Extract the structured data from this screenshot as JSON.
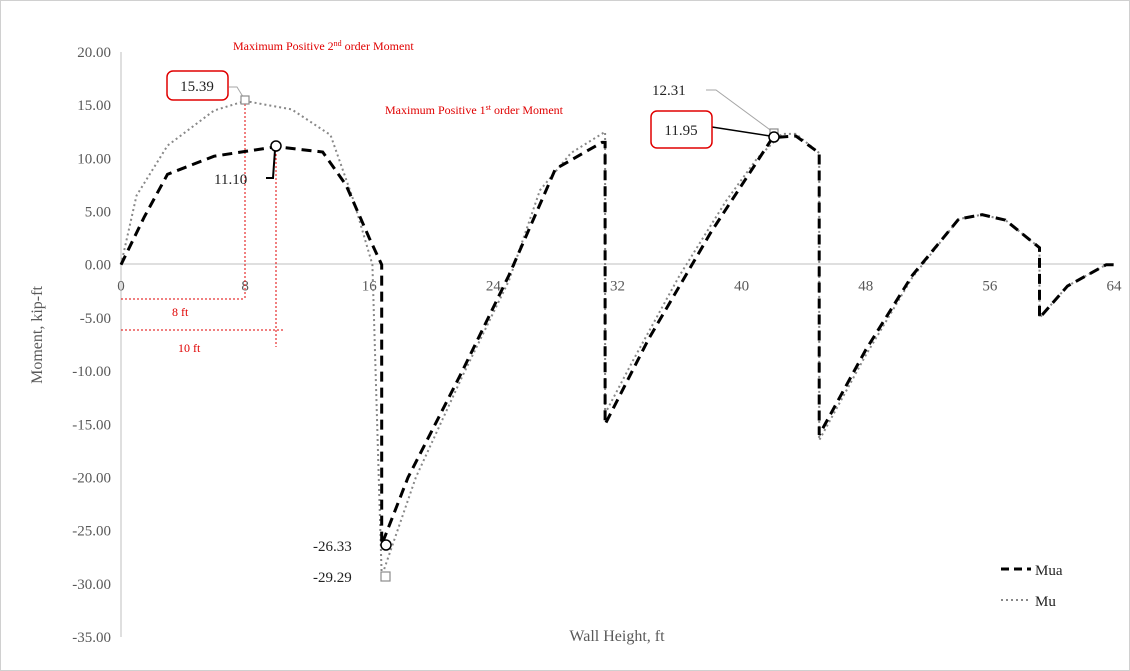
{
  "chart_data": {
    "type": "line",
    "xlabel": "Wall Height, ft",
    "ylabel": "Moment, kip-ft",
    "xlim": [
      0,
      64
    ],
    "ylim": [
      -35,
      20
    ],
    "xticks": [
      "0",
      "8",
      "16",
      "24",
      "32",
      "40",
      "48",
      "56",
      "64"
    ],
    "yticks": [
      "20.00",
      "15.00",
      "10.00",
      "5.00",
      "0.00",
      "-5.00",
      "-10.00",
      "-15.00",
      "-20.00",
      "-25.00",
      "-30.00",
      "-35.00"
    ],
    "legend_position": "bottom-right",
    "series": [
      {
        "name": "Mua",
        "style": "dashed",
        "color": "#000000",
        "points": [
          [
            0,
            0
          ],
          [
            1.5,
            4.5
          ],
          [
            3,
            8.5
          ],
          [
            6,
            10.2
          ],
          [
            10,
            11.1
          ],
          [
            13,
            10.6
          ],
          [
            14.5,
            7.5
          ],
          [
            16,
            2.5
          ],
          [
            16.8,
            0
          ],
          [
            16.8,
            -26.33
          ],
          [
            18.5,
            -20
          ],
          [
            22,
            -10
          ],
          [
            25,
            -1
          ],
          [
            28,
            9
          ],
          [
            31,
            11.5
          ],
          [
            31.2,
            11.5
          ],
          [
            31.2,
            -15
          ],
          [
            34,
            -7
          ],
          [
            38,
            3
          ],
          [
            42,
            11.95
          ],
          [
            43.5,
            12.1
          ],
          [
            45,
            10.5
          ],
          [
            45,
            -16
          ],
          [
            48,
            -8
          ],
          [
            51,
            -1
          ],
          [
            54,
            4.3
          ],
          [
            55.5,
            4.7
          ],
          [
            57,
            4.2
          ],
          [
            59.2,
            1.6
          ],
          [
            59.2,
            -5
          ],
          [
            61,
            -2
          ],
          [
            63.5,
            0
          ],
          [
            64,
            0
          ]
        ]
      },
      {
        "name": "Mu",
        "style": "dotted",
        "color": "#888888",
        "points": [
          [
            0,
            0
          ],
          [
            1,
            6.5
          ],
          [
            3,
            11.2
          ],
          [
            6,
            14.5
          ],
          [
            8,
            15.39
          ],
          [
            11,
            14.6
          ],
          [
            13.5,
            12.2
          ],
          [
            15,
            6
          ],
          [
            16.2,
            0
          ],
          [
            16.8,
            -29.29
          ],
          [
            19,
            -20
          ],
          [
            22,
            -10.5
          ],
          [
            25,
            -1.5
          ],
          [
            27,
            7
          ],
          [
            29,
            10.5
          ],
          [
            31.2,
            12.5
          ],
          [
            31.2,
            -14
          ],
          [
            33,
            -9
          ],
          [
            36,
            -1
          ],
          [
            39,
            6
          ],
          [
            41,
            10
          ],
          [
            42.6,
            12.31
          ],
          [
            43.5,
            12.3
          ],
          [
            45,
            10.5
          ],
          [
            45,
            -16.5
          ],
          [
            48,
            -8.5
          ],
          [
            51,
            -1.2
          ],
          [
            54,
            4.3
          ],
          [
            55.5,
            4.7
          ],
          [
            57,
            4.2
          ],
          [
            59.2,
            1.6
          ],
          [
            59.2,
            -5
          ],
          [
            61,
            -2
          ],
          [
            63.5,
            0
          ],
          [
            64,
            0
          ]
        ]
      }
    ],
    "annotations": {
      "max_pos_2nd": {
        "pre": "Maximum Positive 2",
        "sup": "nd",
        "post": " order Moment"
      },
      "max_pos_1st": {
        "pre": "Maximum Positive 1",
        "sup": "st",
        "post": " order Moment"
      },
      "values": {
        "v1539": "15.39",
        "v1110": "11.10",
        "v1231": "12.31",
        "v1195": "11.95",
        "vm2633": "-26.33",
        "vm2929": "-29.29"
      },
      "dim_8ft": "8 ft",
      "dim_10ft": "10 ft"
    }
  }
}
